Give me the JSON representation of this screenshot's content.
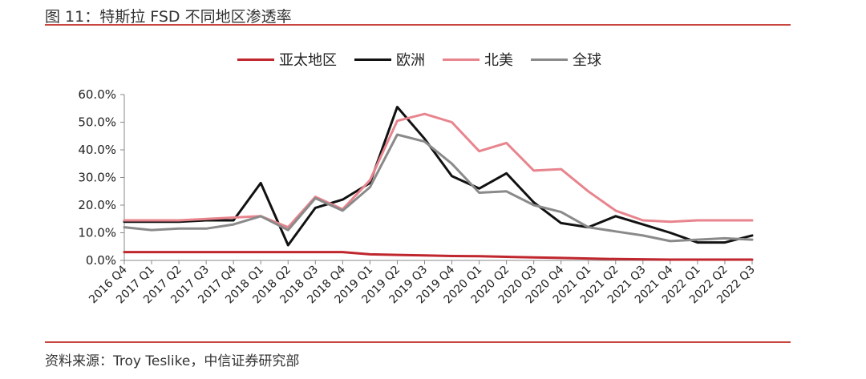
{
  "header": {
    "title": "图 11：特斯拉 FSD 不同地区渗透率"
  },
  "footer": {
    "source": "资料来源：Troy Teslike，中信证券研究部"
  },
  "chart_data": {
    "type": "line",
    "title": "图 11：特斯拉 FSD 不同地区渗透率",
    "xlabel": "",
    "ylabel": "",
    "ylim": [
      0,
      60
    ],
    "y_ticks": [
      "0.0%",
      "10.0%",
      "20.0%",
      "30.0%",
      "40.0%",
      "50.0%",
      "60.0%"
    ],
    "legend_position": "top",
    "grid": false,
    "categories": [
      "2016 Q4",
      "2017 Q1",
      "2017 Q2",
      "2017 Q3",
      "2017 Q4",
      "2018 Q1",
      "2018 Q2",
      "2018 Q3",
      "2018 Q4",
      "2019 Q1",
      "2019 Q2",
      "2019 Q3",
      "2019 Q4",
      "2020 Q1",
      "2020 Q2",
      "2020 Q3",
      "2020 Q4",
      "2021 Q1",
      "2021 Q2",
      "2021 Q3",
      "2021 Q4",
      "2022 Q1",
      "2022 Q2",
      "2022 Q3"
    ],
    "series": [
      {
        "name": "亚太地区",
        "color": "#c0262d",
        "values": [
          3.0,
          3.0,
          3.0,
          3.0,
          3.0,
          3.0,
          3.0,
          3.0,
          3.0,
          2.2,
          2.0,
          1.8,
          1.6,
          1.5,
          1.3,
          1.1,
          0.9,
          0.7,
          0.5,
          0.4,
          0.3,
          0.3,
          0.3,
          0.3
        ]
      },
      {
        "name": "欧洲",
        "color": "#111111",
        "values": [
          14.0,
          14.0,
          14.0,
          14.5,
          14.5,
          28.0,
          5.5,
          19.0,
          22.0,
          28.0,
          55.5,
          44.0,
          30.5,
          26.0,
          31.5,
          21.0,
          13.5,
          12.0,
          16.0,
          13.0,
          10.0,
          6.5,
          6.5,
          9.0
        ]
      },
      {
        "name": "北美",
        "color": "#e8848d",
        "values": [
          14.5,
          14.5,
          14.5,
          15.0,
          15.5,
          16.0,
          12.0,
          23.0,
          18.5,
          29.0,
          50.5,
          53.0,
          50.0,
          39.5,
          42.5,
          32.5,
          33.0,
          25.0,
          18.0,
          14.5,
          14.0,
          14.5,
          14.5,
          14.5
        ]
      },
      {
        "name": "全球",
        "color": "#8a8a8a",
        "values": [
          12.0,
          11.0,
          11.5,
          11.5,
          13.0,
          16.0,
          11.0,
          22.5,
          18.0,
          26.5,
          45.5,
          43.0,
          35.0,
          24.5,
          25.0,
          20.0,
          17.5,
          12.0,
          10.5,
          9.0,
          7.0,
          7.5,
          8.0,
          7.5
        ]
      }
    ]
  }
}
